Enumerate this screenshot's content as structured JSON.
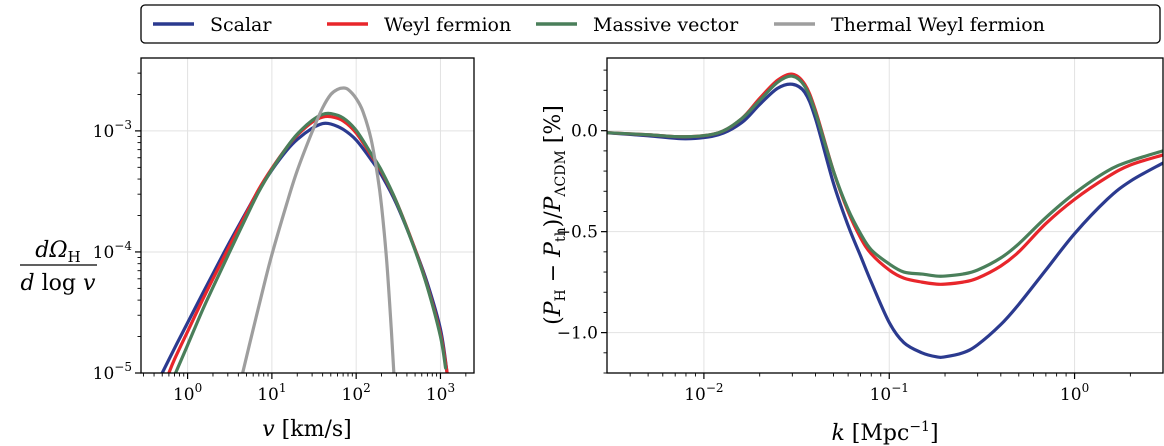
{
  "chart_data": [
    {
      "type": "line",
      "xscale": "log",
      "yscale": "log",
      "xlim": [
        0.28,
        2500
      ],
      "ylim": [
        1e-05,
        0.004
      ],
      "xlabel": "v [km/s]",
      "ylabel": "dΩH / d log v",
      "grid": true,
      "x_ticks": [
        {
          "value": 1,
          "exp": "0"
        },
        {
          "value": 10,
          "exp": "1"
        },
        {
          "value": 100,
          "exp": "2"
        },
        {
          "value": 1000,
          "exp": "3"
        }
      ],
      "y_ticks": [
        {
          "value": 1e-05,
          "exp": "−5"
        },
        {
          "value": 0.0001,
          "exp": "−4"
        },
        {
          "value": 0.001,
          "exp": "−3"
        }
      ],
      "series": [
        {
          "name": "Scalar",
          "color": "#2b3a8f",
          "x": [
            0.5,
            0.7,
            1,
            1.5,
            2,
            3,
            5,
            7,
            10,
            15,
            20,
            30,
            40,
            50,
            70,
            100,
            150,
            200,
            300,
            500,
            700,
            1000,
            1200
          ],
          "y": [
            1e-05,
            1.6e-05,
            2.6e-05,
            4.5e-05,
            6.6e-05,
            0.000113,
            0.000215,
            0.000325,
            0.000475,
            0.00069,
            0.00085,
            0.00105,
            0.00115,
            0.00114,
            0.00103,
            0.00084,
            0.00058,
            0.00043,
            0.00025,
            0.000105,
            5.5e-05,
            2.3e-05,
            1e-05
          ]
        },
        {
          "name": "Weyl fermion",
          "color": "#e8262b",
          "x": [
            0.6,
            0.7,
            1,
            1.5,
            2,
            3,
            5,
            7,
            10,
            15,
            20,
            30,
            40,
            50,
            70,
            100,
            150,
            200,
            300,
            500,
            700,
            1000,
            1200
          ],
          "y": [
            1e-05,
            1.3e-05,
            2.2e-05,
            4e-05,
            6e-05,
            0.000105,
            0.00021,
            0.00033,
            0.00049,
            0.00073,
            0.00092,
            0.00118,
            0.0013,
            0.00131,
            0.00121,
            0.00096,
            0.00063,
            0.00046,
            0.00026,
            0.000105,
            5.2e-05,
            2.1e-05,
            1e-05
          ]
        },
        {
          "name": "Massive vector",
          "color": "#4a7f5a",
          "x": [
            0.72,
            1,
            1.5,
            2,
            3,
            5,
            7,
            10,
            15,
            20,
            30,
            40,
            50,
            70,
            100,
            150,
            200,
            300,
            500,
            700,
            1000,
            1150
          ],
          "y": [
            1e-05,
            1.7e-05,
            3.3e-05,
            5.1e-05,
            9.3e-05,
            0.000196,
            0.000315,
            0.00048,
            0.00073,
            0.00094,
            0.00122,
            0.00137,
            0.00139,
            0.00128,
            0.00101,
            0.00065,
            0.00047,
            0.00026,
            0.000103,
            5.1e-05,
            2e-05,
            1.1e-05
          ]
        },
        {
          "name": "Thermal Weyl fermion",
          "color": "#9e9e9e",
          "x": [
            4.5,
            6,
            8,
            10,
            15,
            20,
            30,
            40,
            50,
            60,
            70,
            80,
            100,
            120,
            150,
            180,
            200,
            230,
            260,
            280
          ],
          "y": [
            1e-05,
            2.3e-05,
            5.2e-05,
            9.5e-05,
            0.00025,
            0.00047,
            0.00098,
            0.00155,
            0.002,
            0.0022,
            0.00226,
            0.0022,
            0.00185,
            0.00145,
            0.00086,
            0.00042,
            0.00024,
            8.5e-05,
            2.4e-05,
            1e-05
          ]
        }
      ]
    },
    {
      "type": "line",
      "xscale": "log",
      "yscale": "linear",
      "xlim": [
        0.003,
        3
      ],
      "ylim": [
        -1.2,
        0.36
      ],
      "xlabel": "k [Mpc⁻¹]",
      "ylabel": "(PH − Pth) / PΛCDM [%]",
      "grid": true,
      "x_ticks": [
        {
          "value": 0.01,
          "exp": "−2"
        },
        {
          "value": 0.1,
          "exp": "−1"
        },
        {
          "value": 1,
          "exp": "0"
        }
      ],
      "y_ticks": [
        {
          "value": 0,
          "label": "0.0"
        },
        {
          "value": -0.5,
          "label": "−0.5"
        },
        {
          "value": -1,
          "label": "−1.0"
        }
      ],
      "series": [
        {
          "name": "Scalar",
          "color": "#2b3a8f",
          "x": [
            0.003,
            0.005,
            0.008,
            0.012,
            0.016,
            0.02,
            0.025,
            0.03,
            0.035,
            0.04,
            0.05,
            0.06,
            0.07,
            0.08,
            0.1,
            0.12,
            0.15,
            0.18,
            0.2,
            0.25,
            0.3,
            0.4,
            0.5,
            0.7,
            1,
            1.5,
            2,
            3
          ],
          "y": [
            -0.01,
            -0.025,
            -0.04,
            -0.02,
            0.04,
            0.13,
            0.21,
            0.23,
            0.19,
            0.06,
            -0.26,
            -0.47,
            -0.62,
            -0.75,
            -0.95,
            -1.05,
            -1.1,
            -1.12,
            -1.12,
            -1.1,
            -1.06,
            -0.96,
            -0.86,
            -0.69,
            -0.51,
            -0.34,
            -0.25,
            -0.16
          ]
        },
        {
          "name": "Weyl fermion",
          "color": "#e8262b",
          "x": [
            0.003,
            0.005,
            0.008,
            0.012,
            0.016,
            0.02,
            0.025,
            0.03,
            0.035,
            0.04,
            0.05,
            0.06,
            0.07,
            0.08,
            0.1,
            0.12,
            0.15,
            0.18,
            0.2,
            0.25,
            0.3,
            0.4,
            0.5,
            0.7,
            1,
            1.5,
            2,
            3
          ],
          "y": [
            -0.01,
            -0.02,
            -0.03,
            -0.01,
            0.06,
            0.16,
            0.25,
            0.28,
            0.23,
            0.1,
            -0.2,
            -0.4,
            -0.53,
            -0.61,
            -0.69,
            -0.73,
            -0.75,
            -0.76,
            -0.76,
            -0.75,
            -0.73,
            -0.67,
            -0.6,
            -0.46,
            -0.34,
            -0.23,
            -0.17,
            -0.12
          ]
        },
        {
          "name": "Massive vector",
          "color": "#4a7f5a",
          "x": [
            0.003,
            0.005,
            0.008,
            0.012,
            0.016,
            0.02,
            0.025,
            0.03,
            0.035,
            0.04,
            0.05,
            0.06,
            0.07,
            0.08,
            0.1,
            0.12,
            0.15,
            0.18,
            0.2,
            0.25,
            0.3,
            0.4,
            0.5,
            0.7,
            1,
            1.5,
            2,
            3
          ],
          "y": [
            -0.01,
            -0.02,
            -0.03,
            -0.01,
            0.06,
            0.15,
            0.24,
            0.27,
            0.22,
            0.09,
            -0.2,
            -0.39,
            -0.51,
            -0.59,
            -0.66,
            -0.7,
            -0.71,
            -0.72,
            -0.72,
            -0.71,
            -0.69,
            -0.63,
            -0.56,
            -0.43,
            -0.31,
            -0.2,
            -0.15,
            -0.1
          ]
        }
      ]
    }
  ],
  "legend": {
    "placement": "top",
    "items": [
      {
        "label": "Scalar",
        "color": "#2b3a8f"
      },
      {
        "label": "Weyl fermion",
        "color": "#e8262b"
      },
      {
        "label": "Massive vector",
        "color": "#4a7f5a"
      },
      {
        "label": "Thermal Weyl fermion",
        "color": "#9e9e9e"
      }
    ]
  }
}
